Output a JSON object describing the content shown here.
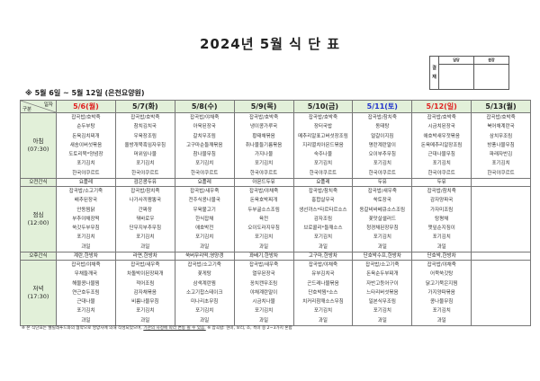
{
  "title": "2024년 5월 식 단 표",
  "approval": {
    "label": "결재",
    "columns": [
      "담당",
      "원장"
    ]
  },
  "subtitle": "※ 5월 6일 ~ 5월 12일 (은천요양원)",
  "corner": {
    "top": "일자",
    "bottom": "구분"
  },
  "days": [
    {
      "label": "5/6(월)",
      "color": "#e02020"
    },
    {
      "label": "5/7(화)",
      "color": "#222222"
    },
    {
      "label": "5/8(수)",
      "color": "#222222"
    },
    {
      "label": "5/9(목)",
      "color": "#222222"
    },
    {
      "label": "5/10(금)",
      "color": "#222222"
    },
    {
      "label": "5/11(토)",
      "color": "#2233cc"
    },
    {
      "label": "5/12(일)",
      "color": "#e02020"
    },
    {
      "label": "5/13(월)",
      "color": "#222222"
    }
  ],
  "rows": [
    {
      "label": "아침\n(07:30)",
      "type": "meal",
      "cells": [
        [
          "잡곡밥/호박죽",
          "순두부탕",
          "돈육김치찌개",
          "새송이버섯볶음",
          "도토리묵*양념장",
          "포기김치",
          "한국야쿠르트"
        ],
        [
          "잡곡밥/호박죽",
          "참치김치국",
          "우육장조림",
          "올방개묵흑임자무침",
          "머위잎나물",
          "포기김치",
          "한국야쿠르트"
        ],
        [
          "잡곡밥/야채죽",
          "아욱된장국",
          "갈치무조림",
          "고구마순들깨볶음",
          "참나물무침",
          "포기김치",
          "한국야쿠르트"
        ],
        [
          "잡곡밥/호박죽",
          "냉이콩가루국",
          "황태채볶음",
          "취나물들기름볶음",
          "가지나물",
          "포기김치",
          "한국야쿠르트"
        ],
        [
          "잡곡밥/호박죽",
          "장터국밥",
          "메추리알표고버섯장조림",
          "지리멸치아몬드볶음",
          "숙주나물",
          "포기김치",
          "한국야쿠르트"
        ],
        [
          "잡곡밥/참치죽",
          "동태탕",
          "얼갈이지짐",
          "명란계란말이",
          "오이부추무침",
          "포기김치",
          "한국야쿠르트"
        ],
        [
          "잡곡밥/호박죽",
          "시금치된장국",
          "애호박새우젓볶음",
          "돈육메추리알장조림",
          "근대나물무침",
          "포기김치",
          "한국야쿠르트"
        ],
        [
          "잡곡밥/호박죽",
          "북어채계란국",
          "삼치무조림",
          "방풍나물무침",
          "파래자반김",
          "포기김치",
          "한국야쿠르트"
        ]
      ]
    },
    {
      "label": "오전간식",
      "type": "snack",
      "cells": [
        "요플레",
        "검은콩두유",
        "요플레",
        "아몬드두유",
        "요플레",
        "두유",
        "두유",
        ""
      ]
    },
    {
      "label": "점심\n(12:00)",
      "type": "meal",
      "cells": [
        [
          "잡곡밥/소고기죽",
          "배추된장국",
          "안동찜닭",
          "부추야채장떡",
          "쑥갓두부무침",
          "포기김치",
          "과일"
        ],
        [
          "잡곡밥/참치죽",
          "나가사끼짬뽕국",
          "간짜장",
          "꿔바로우",
          "단무지부추무침",
          "포기김치",
          "과일"
        ],
        [
          "잡곡밥/새우죽",
          "전주식콩나물국",
          "우육불고기",
          "한식잡채",
          "애호박전",
          "포기김치",
          "과일"
        ],
        [
          "잡곡밥/야채죽",
          "돈육호박찌개",
          "두부굴소스조림",
          "육전",
          "오이도라지무침",
          "포기김치",
          "과일"
        ],
        [
          "잡곡밥/참치죽",
          "홍합살무국",
          "생선까스*타르타르소스",
          "감자조림",
          "브로콜리*들깨소스",
          "포기김치",
          "과일"
        ],
        [
          "잡곡밥/새우죽",
          "쑥토장국",
          "동갈비바베큐소스조림",
          "꽃맛살샐러드",
          "청경채된장무침",
          "포기김치",
          "과일"
        ],
        [
          "잡곡밥/참치죽",
          "감자양파국",
          "가자미조림",
          "탕평채",
          "깻잎순지짐이",
          "포기김치",
          "과일"
        ],
        []
      ]
    },
    {
      "label": "오후간식",
      "type": "snack",
      "cells": [
        "계란,한방차",
        "라면,한방차",
        "쑥버무리떡,영양갱",
        "꽈배기,한방차",
        "고구마,한방차",
        "단호박수프,한방차",
        "단호박,한방차",
        ""
      ]
    },
    {
      "label": "저녁\n(17:30)",
      "type": "meal",
      "cells": [
        [
          "잡곡밥/야채죽",
          "무채들깨국",
          "해물콩나물찜",
          "연근호두조림",
          "근대나물",
          "포기김치",
          "과일"
        ],
        [
          "잡곡밥/새우죽",
          "차돌박이된장찌개",
          "적어조림",
          "감자채볶음",
          "비름나물무침",
          "포기김치",
          "과일"
        ],
        [
          "잡곡밥/소고기죽",
          "꽃게탕",
          "삼색계란찜",
          "소고기찹스테이크",
          "미나리초무침",
          "포기김치",
          "과일"
        ],
        [
          "잡곡밥/새우죽",
          "열무된장국",
          "꽁치캔무조림",
          "야채계란말이",
          "시금치나물",
          "포기김치",
          "과일"
        ],
        [
          "잡곡밥/야채죽",
          "유부김치국",
          "곤드레나물볶음",
          "단호박찜*소스",
          "치커리참깨소스무침",
          "포기김치",
          "과일"
        ],
        [
          "잡곡밥/소고기죽",
          "돈육순두부찌개",
          "자반고등어구이",
          "느타리버섯볶음",
          "일본식무조림",
          "포기김치",
          "과일"
        ],
        [
          "잡곡밥/야채죽",
          "어묵쑥갓탕",
          "닭고기묵은지찜",
          "가지양파볶음",
          "콩나물무침",
          "포기김치",
          "과일"
        ],
        []
      ]
    }
  ],
  "footnote": {
    "part1": "※ 본 식단표는 웰릴레푸드와의 협약으로 영양사에 의해 작성되었으며, ",
    "underlined": "기관의 사정에 따라 변동 될 수 있음.",
    "part2": " ※ 잡곡밥: 현미, 보리, 조, 흑미 중 2~3가지 혼합"
  },
  "colors": {
    "header_bg": "#e2f0d9",
    "sunday": "#e02020",
    "saturday": "#2233cc"
  }
}
